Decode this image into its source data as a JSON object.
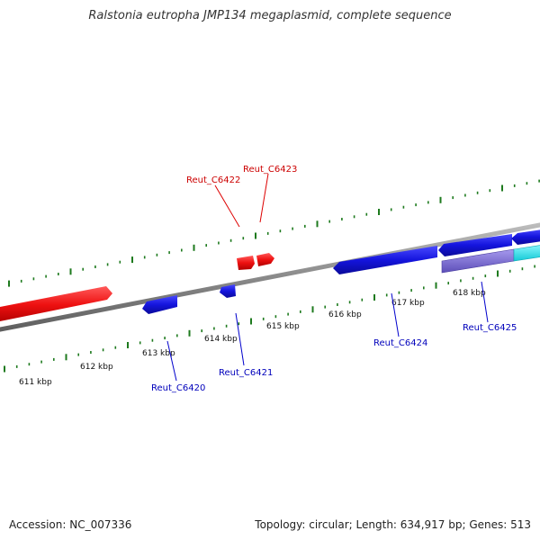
{
  "title": "Ralstonia eutropha JMP134 megaplasmid, complete sequence",
  "footer": {
    "accession": "Accession: NC_007336",
    "topology": "Topology: circular; Length: 634,917 bp; Genes: 513"
  },
  "colors": {
    "forward_strand": "#ee1111",
    "reverse_strand": "#1414dd",
    "backbone": "#8a8a8a",
    "ticks": "#1e7a1e",
    "rna": "#7766cc",
    "other_feature": "#22e5ef",
    "forward_label": "#cc0000",
    "reverse_label": "#0000bb"
  },
  "scale_labels": [
    "611 kbp",
    "612 kbp",
    "613 kbp",
    "614 kbp",
    "615 kbp",
    "616 kbp",
    "617 kbp",
    "618 kbp"
  ],
  "gene_labels": {
    "forward": [
      "Reut_C6422",
      "Reut_C6423"
    ],
    "reverse": [
      "Reut_C6420",
      "Reut_C6421",
      "Reut_C6424",
      "Reut_C6425"
    ]
  }
}
